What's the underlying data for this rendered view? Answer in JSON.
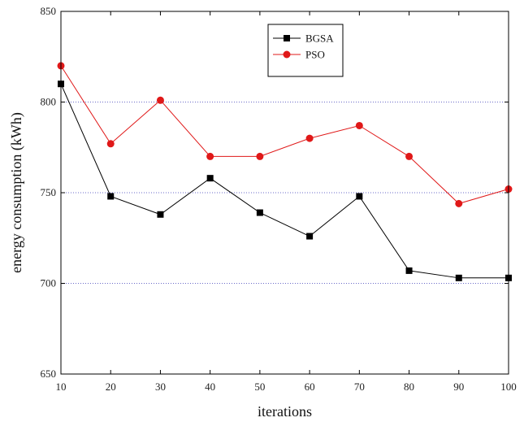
{
  "chart_data": {
    "type": "line",
    "title": "",
    "xlabel": "iterations",
    "ylabel": "energy consumption (kWh)",
    "x": [
      10,
      20,
      30,
      40,
      50,
      60,
      70,
      80,
      90,
      100
    ],
    "x_ticks": [
      "10",
      "20",
      "30",
      "40",
      "50",
      "60",
      "70",
      "80",
      "90",
      "100"
    ],
    "y_ticks": [
      "650",
      "700",
      "750",
      "800",
      "850"
    ],
    "xlim": [
      10,
      100
    ],
    "ylim": [
      650,
      850
    ],
    "grid": "horizontal dotted at 700, 750, 800",
    "legend_position": "top-center",
    "series": [
      {
        "name": "BGSA",
        "color": "#000000",
        "marker": "square",
        "values": [
          810,
          748,
          738,
          758,
          739,
          726,
          748,
          707,
          703,
          703
        ]
      },
      {
        "name": "PSO",
        "color": "#e01818",
        "marker": "circle",
        "values": [
          820,
          777,
          801,
          770,
          770,
          780,
          787,
          770,
          744,
          752
        ]
      }
    ]
  }
}
